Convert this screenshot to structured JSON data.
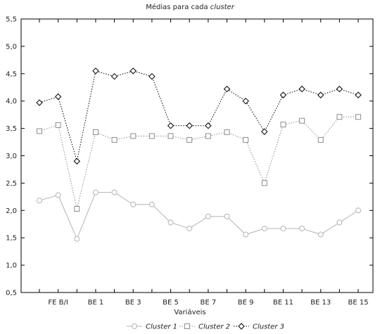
{
  "chart_data": {
    "type": "line",
    "title": "Médias para cada cluster",
    "title_parts": {
      "plain": "Médias para cada ",
      "italic": "cluster"
    },
    "xlabel": "Variáveis",
    "ylabel": "",
    "ylim": [
      0.5,
      5.5
    ],
    "yticks": [
      "0,5",
      "1,0",
      "1,5",
      "2,0",
      "2,5",
      "3,0",
      "3,5",
      "4,0",
      "4,5",
      "5,0",
      "5,5"
    ],
    "grid": false,
    "legend_position": "bottom",
    "categories": [
      "",
      "FE B/I",
      "",
      "BE 1",
      "",
      "BE 3",
      "",
      "BE 5",
      "",
      "BE 7",
      "",
      "BE 9",
      "",
      "BE 11",
      "",
      "BE 13",
      "",
      "BE 15"
    ],
    "series": [
      {
        "name": "Cluster  1",
        "marker": "circle",
        "line_style": "solid",
        "color": "#b4b4b4",
        "values": [
          2.18,
          2.28,
          1.48,
          2.33,
          2.33,
          2.11,
          2.11,
          1.78,
          1.67,
          1.89,
          1.89,
          1.56,
          1.67,
          1.67,
          1.67,
          1.56,
          1.78,
          2.0
        ]
      },
      {
        "name": "Cluster  2",
        "marker": "square",
        "line_style": "dotted",
        "color": "#8c8c8c",
        "values": [
          3.45,
          3.56,
          2.03,
          3.43,
          3.29,
          3.36,
          3.36,
          3.36,
          3.29,
          3.36,
          3.43,
          3.29,
          2.5,
          3.57,
          3.64,
          3.29,
          3.71,
          3.71
        ]
      },
      {
        "name": "Cluster  3",
        "marker": "diamond",
        "line_style": "dotted",
        "color": "#000000",
        "values": [
          3.97,
          4.08,
          2.9,
          4.55,
          4.45,
          4.55,
          4.45,
          3.55,
          3.55,
          3.55,
          4.22,
          4.0,
          3.44,
          4.11,
          4.22,
          4.11,
          4.22,
          4.11
        ]
      }
    ]
  }
}
